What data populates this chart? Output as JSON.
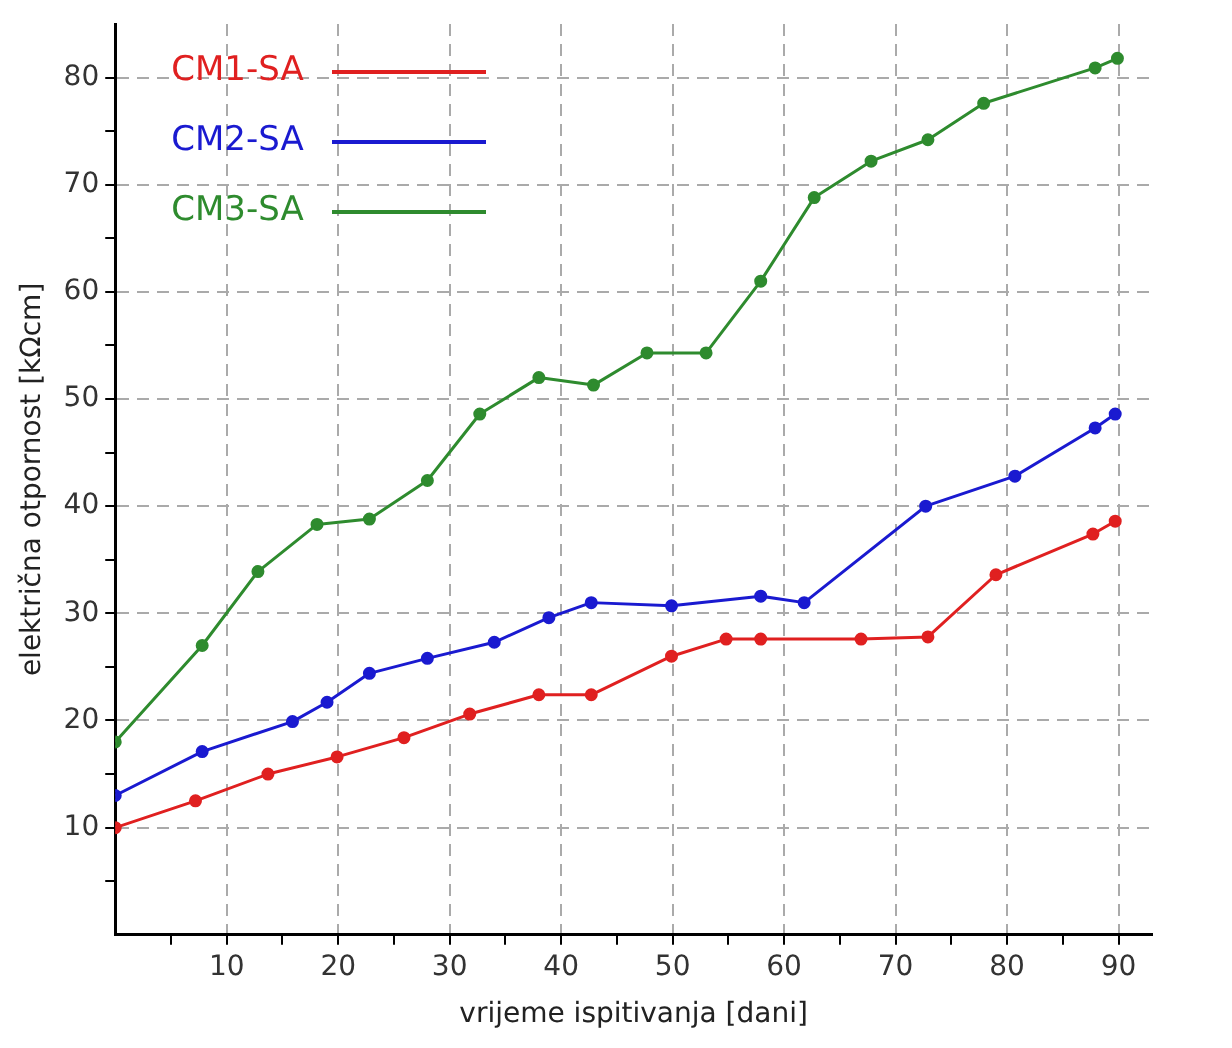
{
  "chart_data": {
    "type": "line",
    "xlabel": "vrijeme ispitivanja [dani]",
    "ylabel": "električna otpornost [kΩcm]",
    "xlim": [
      0,
      93
    ],
    "ylim": [
      0,
      85
    ],
    "xticks": [
      {
        "value": 5,
        "label": null
      },
      10,
      {
        "value": 15,
        "label": null
      },
      20,
      {
        "value": 25,
        "label": null
      },
      30,
      {
        "value": 35,
        "label": null
      },
      40,
      {
        "value": 45,
        "label": null
      },
      50,
      {
        "value": 55,
        "label": null
      },
      60,
      {
        "value": 65,
        "label": null
      },
      70,
      {
        "value": 75,
        "label": null
      },
      80,
      {
        "value": 85,
        "label": null
      },
      90
    ],
    "yticks": [
      {
        "value": 5,
        "label": null
      },
      10,
      {
        "value": 15,
        "label": null
      },
      20,
      {
        "value": 25,
        "label": null
      },
      30,
      {
        "value": 35,
        "label": null
      },
      40,
      {
        "value": 45,
        "label": null
      },
      50,
      {
        "value": 55,
        "label": null
      },
      60,
      {
        "value": 65,
        "label": null
      },
      70,
      {
        "value": 75,
        "label": null
      },
      80
    ],
    "grid": true,
    "legend": "top left",
    "marker": "circle",
    "line_style": "solid",
    "series": [
      {
        "name": "CM1-SA",
        "color": "#e02020",
        "x": [
          0,
          7.2,
          13.7,
          19.9,
          25.9,
          31.8,
          38,
          42.7,
          49.9,
          54.8,
          57.9,
          66.9,
          72.9,
          79,
          87.7,
          89.7
        ],
        "values": [
          10,
          12.5,
          15,
          16.6,
          18.4,
          20.6,
          22.4,
          22.4,
          26,
          27.6,
          27.6,
          27.6,
          27.8,
          33.6,
          37.4,
          38.6
        ]
      },
      {
        "name": "CM2-SA",
        "color": "#1a1ad0",
        "x": [
          0,
          7.8,
          15.9,
          19,
          22.8,
          28,
          34,
          38.9,
          42.7,
          49.9,
          57.9,
          61.8,
          72.7,
          80.7,
          87.9,
          89.7
        ],
        "values": [
          13,
          17.1,
          19.9,
          21.7,
          24.4,
          25.8,
          27.3,
          29.6,
          31,
          30.7,
          31.6,
          31,
          40,
          42.8,
          47.3,
          48.6
        ]
      },
      {
        "name": "CM3-SA",
        "color": "#2e8b2e",
        "x": [
          0,
          7.8,
          12.8,
          18.1,
          22.8,
          28,
          32.7,
          38,
          42.9,
          47.7,
          53,
          57.9,
          62.7,
          67.8,
          72.9,
          77.9,
          87.9,
          89.9
        ],
        "values": [
          18,
          27,
          33.9,
          38.3,
          38.8,
          42.4,
          48.6,
          52,
          51.3,
          54.3,
          54.3,
          61,
          68.8,
          72.2,
          74.2,
          77.6,
          80.9,
          81.8
        ]
      }
    ]
  }
}
